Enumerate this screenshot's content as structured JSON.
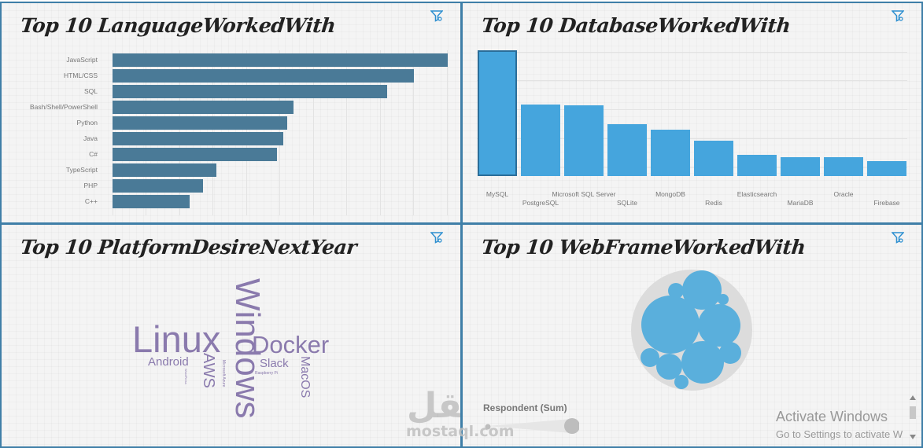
{
  "panels": {
    "languages": {
      "title": "Top 10 LanguageWorkedWith",
      "filter_icon": "filter-icon"
    },
    "databases": {
      "title": "Top 10 DatabaseWorkedWith",
      "filter_icon": "filter-icon"
    },
    "platforms": {
      "title": "Top 10 PlatformDesireNextYear",
      "filter_icon": "filter-icon"
    },
    "webframes": {
      "title": "Top 10 WebFrameWorkedWith",
      "filter_icon": "filter-icon",
      "legend_title": "Respondent (Sum)"
    }
  },
  "watermark": {
    "arabic": "مستقل",
    "latin": "mostaql.com"
  },
  "os_overlay": {
    "title": "Activate Windows",
    "subtitle": "Go to Settings to activate W"
  },
  "colors": {
    "panel_border": "#3f7fa8",
    "hbar": "#4a7a97",
    "vbar": "#45a5dd",
    "vbar_selected_border": "#2a6d99",
    "word": "#8a7aad",
    "bubble": "#5aafdc",
    "bubble_bg": "#dcdcdc"
  },
  "chart_data": [
    {
      "type": "bar",
      "orientation": "horizontal",
      "title": "Top 10 LanguageWorkedWith",
      "categories": [
        "JavaScript",
        "HTML/CSS",
        "SQL",
        "Bash/Shell/PowerShell",
        "Python",
        "Java",
        "C#",
        "TypeScript",
        "PHP",
        "C++"
      ],
      "values": [
        100,
        90,
        82,
        54,
        52,
        51,
        49,
        31,
        27,
        23
      ],
      "xlabel": "",
      "ylabel": "",
      "grid": true,
      "note": "relative values estimated from bar lengths (JavaScript = 100)"
    },
    {
      "type": "bar",
      "orientation": "vertical",
      "title": "Top 10 DatabaseWorkedWith",
      "categories": [
        "MySQL",
        "PostgreSQL",
        "Microsoft SQL Server",
        "SQLite",
        "MongoDB",
        "Redis",
        "Elasticsearch",
        "MariaDB",
        "Oracle",
        "Firebase"
      ],
      "values": [
        100,
        57,
        56,
        41,
        37,
        28,
        17,
        15,
        15,
        12
      ],
      "selected": "MySQL",
      "grid": true,
      "note": "relative values estimated from bar heights (MySQL = 100)"
    },
    {
      "type": "wordcloud",
      "title": "Top 10 PlatformDesireNextYear",
      "words": [
        {
          "text": "Linux",
          "size": 46,
          "orientation": "horizontal"
        },
        {
          "text": "Windows",
          "size": 44,
          "orientation": "vertical"
        },
        {
          "text": "Docker",
          "size": 31,
          "orientation": "horizontal"
        },
        {
          "text": "Android",
          "size": 15,
          "orientation": "horizontal"
        },
        {
          "text": "AWS",
          "size": 20,
          "orientation": "vertical"
        },
        {
          "text": "Slack",
          "size": 15,
          "orientation": "horizontal"
        },
        {
          "text": "MacOS",
          "size": 16,
          "orientation": "vertical"
        },
        {
          "text": "Microsoft Azure",
          "size": 5,
          "orientation": "vertical"
        },
        {
          "text": "Raspberry Pi",
          "size": 5,
          "orientation": "horizontal"
        },
        {
          "text": "WordPress",
          "size": 4,
          "orientation": "vertical"
        }
      ]
    },
    {
      "type": "bubble",
      "title": "Top 10 WebFrameWorkedWith",
      "legend": "Respondent (Sum)",
      "bubbles": [
        {
          "r": 36
        },
        {
          "r": 27
        },
        {
          "r": 25
        },
        {
          "r": 25
        },
        {
          "r": 16
        },
        {
          "r": 14
        },
        {
          "r": 12
        },
        {
          "r": 10
        },
        {
          "r": 9
        },
        {
          "r": 7
        }
      ],
      "note": "circle labels not visible; radii estimated in pixels"
    }
  ]
}
